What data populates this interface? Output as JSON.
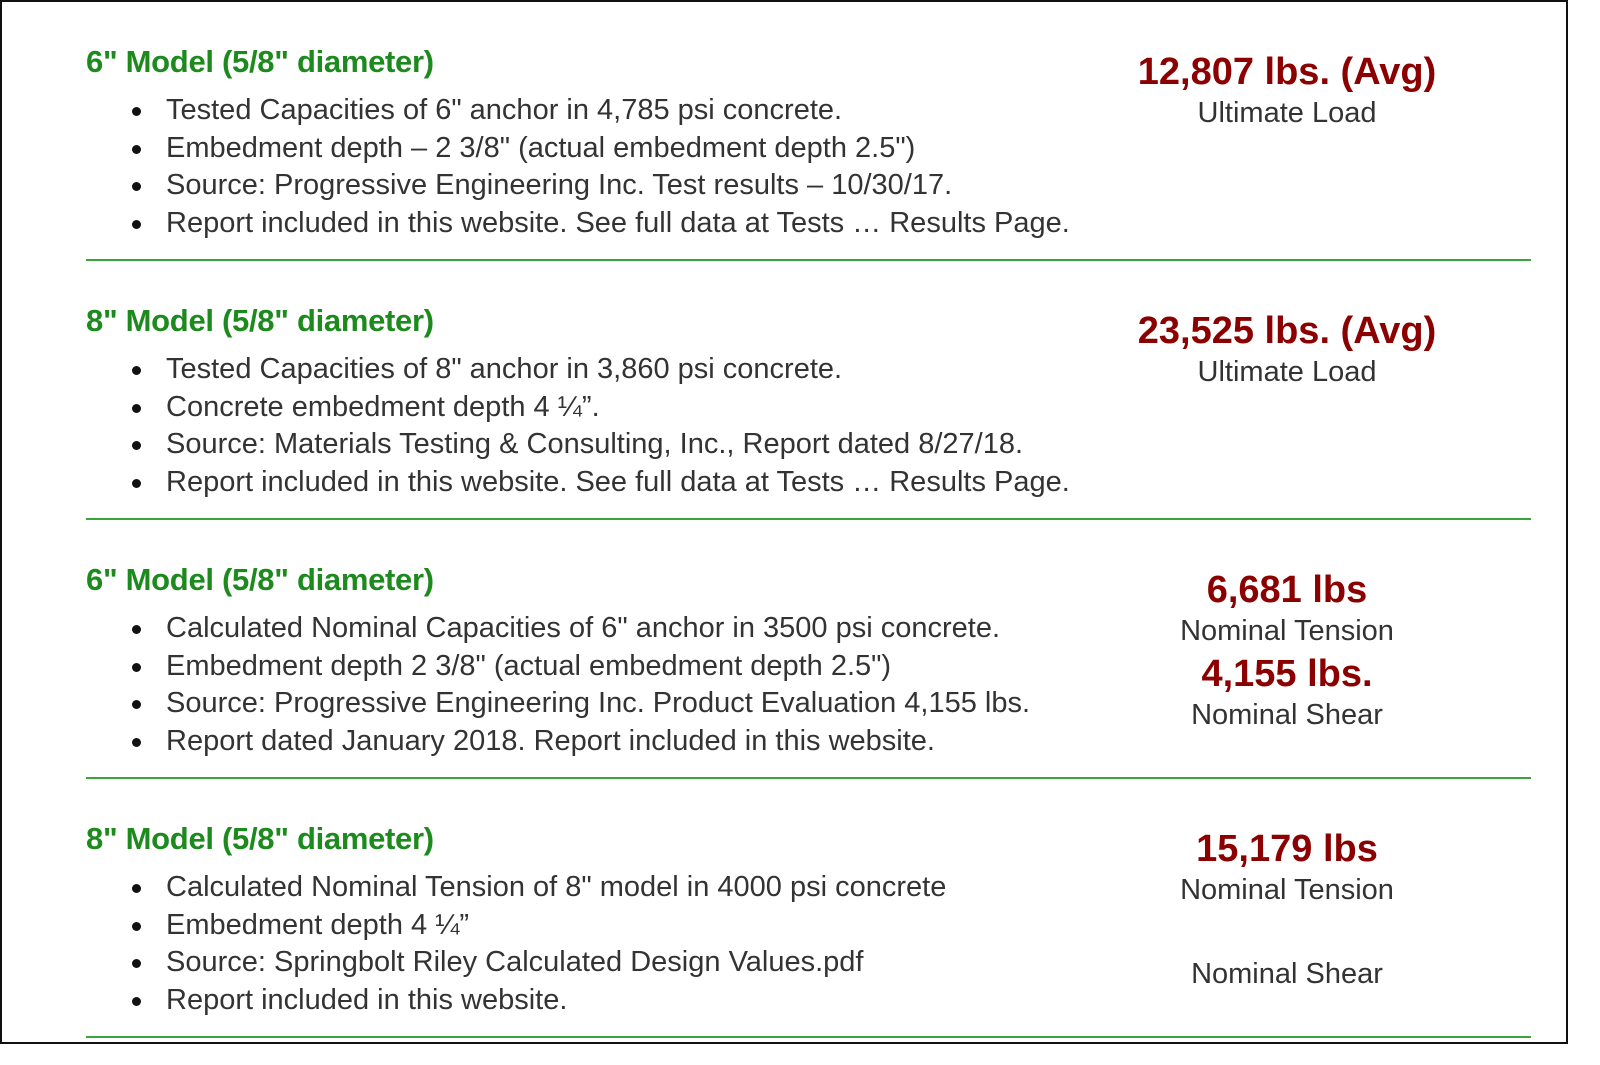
{
  "sections": [
    {
      "heading": "6\" Model (5/8\" diameter)",
      "bullets": [
        "Tested Capacities of 6\" anchor in 4,785 psi concrete.",
        "Embedment depth – 2 3/8\" (actual embedment depth 2.5\")",
        "Source: Progressive Engineering Inc. Test results – 10/30/17.",
        "Report included in this website. See full data at Tests … Results Page."
      ],
      "stats": [
        {
          "value": "12,807 lbs. (Avg)",
          "label": "Ultimate Load"
        }
      ]
    },
    {
      "heading": "8\" Model (5/8\" diameter)",
      "bullets": [
        "Tested Capacities of 8\" anchor in 3,860 psi concrete.",
        "Concrete embedment depth 4 ¼”.",
        "Source: Materials Testing & Consulting, Inc., Report dated 8/27/18.",
        "Report included in this website. See full data at Tests … Results Page."
      ],
      "stats": [
        {
          "value": "23,525 lbs. (Avg)",
          "label": "Ultimate Load"
        }
      ]
    },
    {
      "heading": "6\" Model (5/8\" diameter)",
      "bullets": [
        "Calculated Nominal Capacities of 6\" anchor in 3500 psi concrete.",
        "Embedment depth 2 3/8\" (actual embedment depth 2.5\")",
        "Source: Progressive Engineering Inc. Product Evaluation 4,155 lbs.",
        "Report dated January 2018. Report included in this website."
      ],
      "stats": [
        {
          "value": "6,681 lbs",
          "label": "Nominal Tension"
        },
        {
          "value": "4,155 lbs.",
          "label": "Nominal Shear"
        }
      ]
    },
    {
      "heading": "8\" Model (5/8\" diameter)",
      "bullets": [
        "Calculated Nominal Tension of 8\" model in 4000 psi concrete",
        "Embedment depth 4 ¼”",
        "Source: Springbolt Riley Calculated Design Values.pdf",
        "Report included in this website."
      ],
      "stats": [
        {
          "value": "15,179 lbs",
          "label": "Nominal Tension"
        },
        {
          "value": "",
          "label": "Nominal Shear"
        }
      ]
    }
  ],
  "colors": {
    "heading": "#1d8a1d",
    "stat_value": "#8b0000",
    "divider": "#3aa53a",
    "body_text": "#333333"
  }
}
